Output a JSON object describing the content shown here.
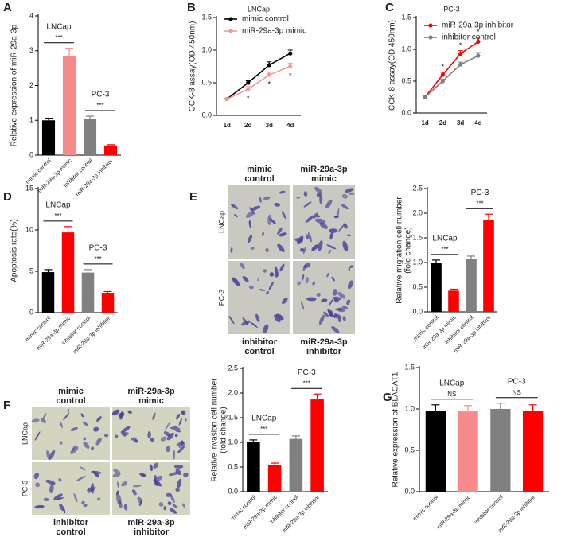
{
  "chart_data": [
    {
      "type": "bar",
      "panel": "A",
      "ylabel": "Relative expression of miR-29a-3p",
      "categories": [
        "mimic control",
        "miR-29a-3p mimic",
        "inhibitor control",
        "miR-29a-3p inhibitor"
      ],
      "values": [
        1.0,
        2.85,
        1.05,
        0.28
      ],
      "errors": [
        0.06,
        0.22,
        0.07,
        0.02
      ],
      "colors": [
        "#000000",
        "#f48a8a",
        "#808080",
        "#ff0000"
      ],
      "ylim": [
        0,
        4
      ],
      "yticks": [
        0,
        1,
        2,
        3,
        4
      ],
      "groups": [
        {
          "label": "LNCap",
          "significance": "***"
        },
        {
          "label": "PC-3",
          "significance": "***"
        }
      ]
    },
    {
      "type": "line",
      "panel": "B",
      "title": "LNCap",
      "ylabel": "CCK-8 assay(OD 450nm)",
      "categories": [
        "1d",
        "2d",
        "3d",
        "4d"
      ],
      "series": [
        {
          "name": "mimic control",
          "color": "#000000",
          "values": [
            0.25,
            0.5,
            0.77,
            0.95
          ],
          "errors": [
            0.01,
            0.03,
            0.05,
            0.05
          ]
        },
        {
          "name": "miR-29a-3p mimic",
          "color": "#f49a9a",
          "values": [
            0.25,
            0.4,
            0.62,
            0.75
          ],
          "errors": [
            0.01,
            0.04,
            0.04,
            0.05
          ],
          "significance": [
            null,
            "*",
            "*",
            "*"
          ]
        }
      ],
      "ylim": [
        0,
        1.5
      ],
      "yticks": [
        {
          "value": 0,
          "label": "0.0"
        },
        {
          "value": 0.5,
          "label": "0.5"
        },
        {
          "value": 1,
          "label": "1.0"
        },
        {
          "value": 1.5,
          "label": "1.5"
        }
      ]
    },
    {
      "type": "line",
      "panel": "C",
      "title": "PC-3",
      "ylabel": "CCK-8 assay(OD 450nm)",
      "categories": [
        "1d",
        "2d",
        "3d",
        "4d"
      ],
      "series": [
        {
          "name": "miR-29a-3p inhibitor",
          "color": "#ff0000",
          "values": [
            0.25,
            0.6,
            0.93,
            1.12
          ],
          "errors": [
            0.01,
            0.04,
            0.05,
            0.07
          ],
          "significance": [
            null,
            "*",
            "*",
            "*"
          ]
        },
        {
          "name": "inhibitor control",
          "color": "#808080",
          "values": [
            0.25,
            0.5,
            0.76,
            0.9
          ],
          "errors": [
            0.01,
            0.03,
            0.04,
            0.05
          ]
        }
      ],
      "ylim": [
        0,
        1.5
      ],
      "yticks": [
        {
          "value": 0,
          "label": "0.0"
        },
        {
          "value": 0.5,
          "label": "0.5"
        },
        {
          "value": 1,
          "label": "1.0"
        },
        {
          "value": 1.5,
          "label": "1.5"
        }
      ]
    },
    {
      "type": "bar",
      "panel": "D",
      "ylabel": "Apoptosis rate(%)",
      "categories": [
        "mimic control",
        "miR-29a-3p mimic",
        "inhibitor control",
        "miR-29a-3p inhibitor"
      ],
      "values": [
        4.9,
        9.7,
        4.85,
        2.4
      ],
      "errors": [
        0.3,
        0.7,
        0.35,
        0.15
      ],
      "colors": [
        "#000000",
        "#ff0000",
        "#808080",
        "#ff0000"
      ],
      "ylim": [
        0,
        15
      ],
      "yticks": [
        0,
        5,
        10,
        15
      ],
      "groups": [
        {
          "label": "LNCap",
          "significance": "***"
        },
        {
          "label": "PC-3",
          "significance": "***"
        }
      ]
    },
    {
      "type": "bar",
      "panel": "E",
      "ylabel": "Relative migration cell number (fold change)",
      "categories": [
        "mimic control",
        "miR-29a-3p mimic",
        "inhibitor control",
        "miR-29a-3p inhibitor"
      ],
      "values": [
        1.0,
        0.43,
        1.07,
        1.86
      ],
      "errors": [
        0.05,
        0.03,
        0.06,
        0.12
      ],
      "colors": [
        "#000000",
        "#ff0000",
        "#808080",
        "#ff0000"
      ],
      "ylim": [
        0,
        2.5
      ],
      "yticks": [
        {
          "value": 0,
          "label": "0.0"
        },
        {
          "value": 0.5,
          "label": "0.5"
        },
        {
          "value": 1,
          "label": "1.0"
        },
        {
          "value": 1.5,
          "label": "1.5"
        },
        {
          "value": 2,
          "label": "2.0"
        },
        {
          "value": 2.5,
          "label": "2.5"
        }
      ],
      "groups": [
        {
          "label": "LNCap",
          "significance": "***"
        },
        {
          "label": "PC-3",
          "significance": "***"
        }
      ],
      "images": {
        "top_labels": [
          "mimic control",
          "miR-29a-3p mimic"
        ],
        "row_labels": [
          "LNCap",
          "PC-3"
        ],
        "bottom_labels": [
          "inhibitor control",
          "miR-29a-3p inhibitor"
        ]
      }
    },
    {
      "type": "bar",
      "panel": "F",
      "ylabel": "Relative invasion cell number (fold change)",
      "categories": [
        "mimic control",
        "miR-29a-3p mimic",
        "inhibitor control",
        "miR-29a-3p inhibitor"
      ],
      "values": [
        1.0,
        0.54,
        1.07,
        1.87
      ],
      "errors": [
        0.05,
        0.04,
        0.06,
        0.11
      ],
      "colors": [
        "#000000",
        "#ff0000",
        "#808080",
        "#ff0000"
      ],
      "ylim": [
        0,
        2.5
      ],
      "yticks": [
        {
          "value": 0,
          "label": "0.0"
        },
        {
          "value": 0.5,
          "label": "0.5"
        },
        {
          "value": 1,
          "label": "1.0"
        },
        {
          "value": 1.5,
          "label": "1.5"
        },
        {
          "value": 2,
          "label": "2.0"
        },
        {
          "value": 2.5,
          "label": "2.5"
        }
      ],
      "groups": [
        {
          "label": "LNCap",
          "significance": "***"
        },
        {
          "label": "PC-3",
          "significance": "***"
        }
      ],
      "images": {
        "top_labels": [
          "mimic control",
          "miR-29a-3p mimic"
        ],
        "row_labels": [
          "LNCap",
          "PC-3"
        ],
        "bottom_labels": [
          "inhibitor control",
          "miR-29a-3p inhibitor"
        ]
      }
    },
    {
      "type": "bar",
      "panel": "G",
      "ylabel": "Relative expression of BLACAT1",
      "categories": [
        "mimic control",
        "miR-29a-3p mimic",
        "inhibitor control",
        "miR-29a-3p inhibitor"
      ],
      "values": [
        0.98,
        0.97,
        1.0,
        0.98
      ],
      "errors": [
        0.07,
        0.07,
        0.07,
        0.07
      ],
      "colors": [
        "#000000",
        "#f58b8b",
        "#808080",
        "#ff0000"
      ],
      "ylim": [
        0,
        1.5
      ],
      "yticks": [
        {
          "value": 0,
          "label": "0.0"
        },
        {
          "value": 0.5,
          "label": "0.5"
        },
        {
          "value": 1,
          "label": "1.0"
        },
        {
          "value": 1.5,
          "label": "1.5"
        }
      ],
      "groups": [
        {
          "label": "LNCap",
          "significance": "NS"
        },
        {
          "label": "PC-3",
          "significance": "NS"
        }
      ]
    }
  ]
}
